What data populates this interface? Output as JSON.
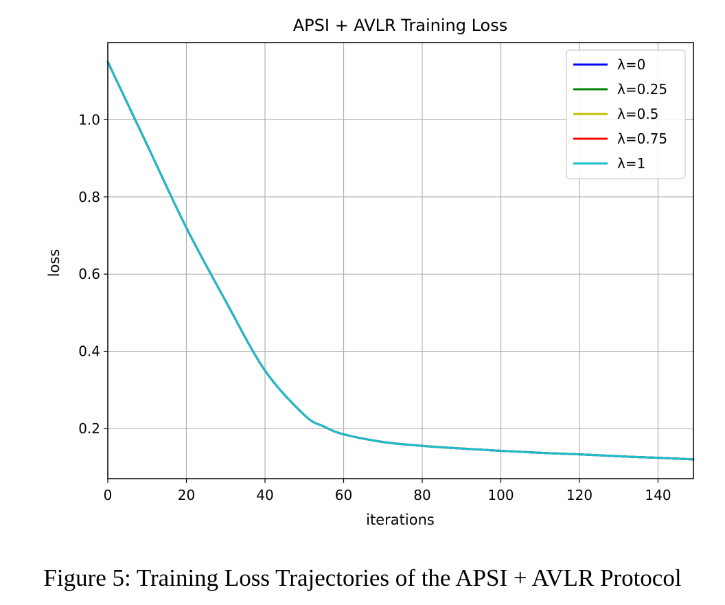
{
  "chart_data": {
    "type": "line",
    "title": "APSI + AVLR Training Loss",
    "xlabel": "iterations",
    "ylabel": "loss",
    "xlim": [
      0,
      149
    ],
    "ylim": [
      0.07,
      1.2
    ],
    "xticks": [
      0,
      20,
      40,
      60,
      80,
      100,
      120,
      140
    ],
    "yticks": [
      0.2,
      0.4,
      0.6,
      0.8,
      1.0
    ],
    "ytick_labels": [
      "0.2",
      "0.4",
      "0.6",
      "0.8",
      "1.0"
    ],
    "grid": true,
    "legend_position": "top-right",
    "x": [
      0,
      10,
      20,
      30,
      40,
      50,
      55,
      60,
      70,
      80,
      90,
      100,
      110,
      120,
      130,
      140,
      149
    ],
    "series": [
      {
        "name": "λ=0",
        "color": "#0000ff",
        "values": [
          1.15,
          0.935,
          0.72,
          0.53,
          0.35,
          0.235,
          0.205,
          0.185,
          0.165,
          0.155,
          0.148,
          0.142,
          0.137,
          0.133,
          0.128,
          0.124,
          0.12
        ]
      },
      {
        "name": "λ=0.25",
        "color": "#008000",
        "values": [
          1.15,
          0.935,
          0.72,
          0.53,
          0.35,
          0.235,
          0.205,
          0.185,
          0.165,
          0.155,
          0.148,
          0.142,
          0.137,
          0.133,
          0.128,
          0.124,
          0.12
        ]
      },
      {
        "name": "λ=0.5",
        "color": "#bfbf00",
        "values": [
          1.15,
          0.935,
          0.72,
          0.53,
          0.35,
          0.235,
          0.205,
          0.185,
          0.165,
          0.155,
          0.148,
          0.142,
          0.137,
          0.133,
          0.128,
          0.124,
          0.12
        ]
      },
      {
        "name": "λ=0.75",
        "color": "#ff0000",
        "values": [
          1.15,
          0.935,
          0.72,
          0.53,
          0.35,
          0.235,
          0.205,
          0.185,
          0.165,
          0.155,
          0.148,
          0.142,
          0.137,
          0.133,
          0.128,
          0.124,
          0.12
        ]
      },
      {
        "name": "λ=1",
        "color": "#17becf",
        "values": [
          1.15,
          0.935,
          0.72,
          0.53,
          0.35,
          0.235,
          0.205,
          0.185,
          0.165,
          0.155,
          0.148,
          0.142,
          0.137,
          0.133,
          0.128,
          0.124,
          0.12
        ]
      }
    ]
  },
  "caption": "Figure 5: Training Loss Trajectories of the APSI + AVLR Protocol"
}
